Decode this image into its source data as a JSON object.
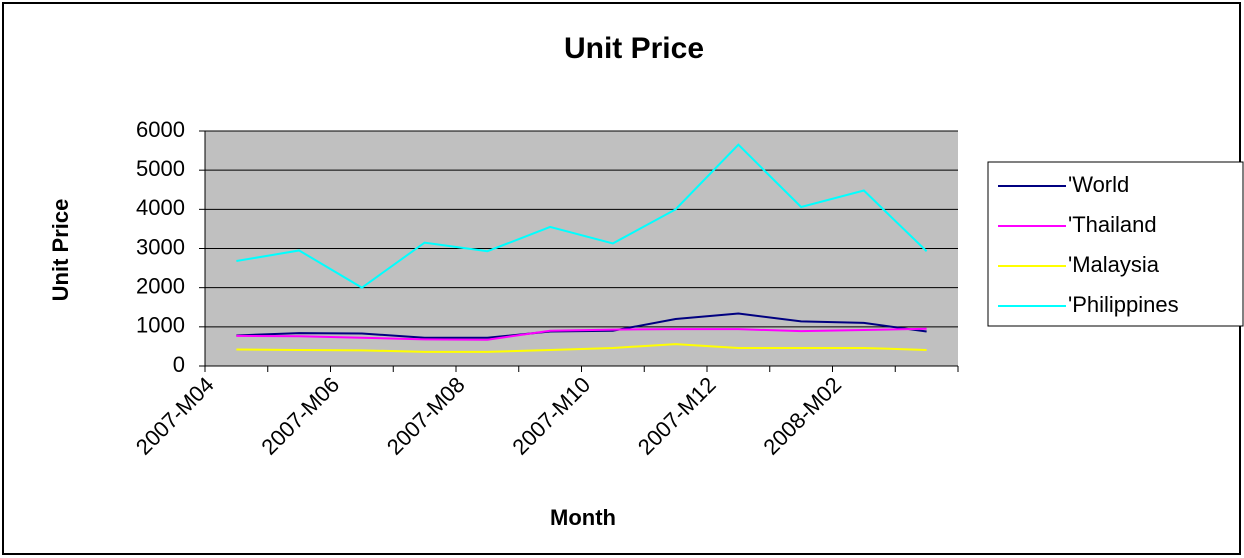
{
  "chart_data": {
    "type": "line",
    "title": "Unit Price",
    "x_label": "Month",
    "y_label": "Unit Price",
    "categories": [
      "2007-M04",
      null,
      "2007-M06",
      null,
      "2007-M08",
      null,
      "2007-M10",
      null,
      "2007-M12",
      null,
      "2008-M02",
      null
    ],
    "series": [
      {
        "name": "'World",
        "color": "#000080",
        "values": [
          780,
          840,
          830,
          720,
          720,
          880,
          900,
          1200,
          1340,
          1140,
          1100,
          880
        ]
      },
      {
        "name": "'Thailand",
        "color": "#ff00ff",
        "values": [
          770,
          760,
          720,
          680,
          670,
          900,
          930,
          940,
          940,
          890,
          920,
          950
        ]
      },
      {
        "name": "'Malaysia",
        "color": "#ffff00",
        "values": [
          420,
          410,
          400,
          360,
          360,
          410,
          460,
          560,
          460,
          460,
          460,
          410
        ]
      },
      {
        "name": "'Philippines",
        "color": "#00ffff",
        "values": [
          2680,
          2950,
          2000,
          3150,
          2930,
          3550,
          3130,
          4000,
          5650,
          4060,
          4480,
          2930
        ]
      }
    ],
    "ylim": [
      0,
      6000
    ],
    "yticks": [
      0,
      1000,
      2000,
      3000,
      4000,
      5000,
      6000
    ],
    "grid": true,
    "legend": "right"
  }
}
